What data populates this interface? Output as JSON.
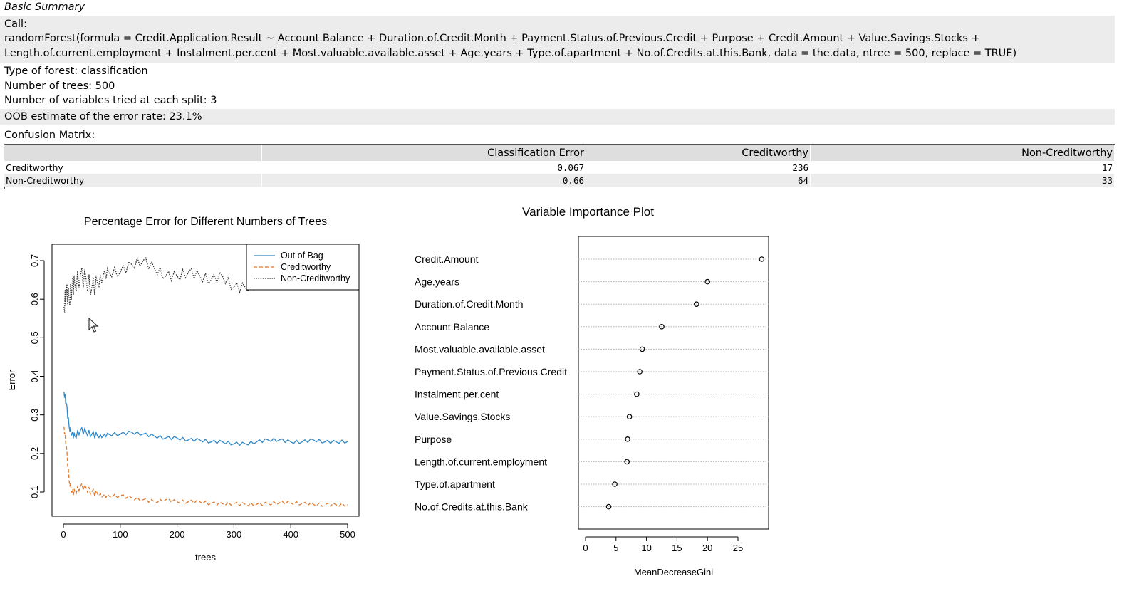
{
  "summary_title": "Basic Summary",
  "call_label": "Call:",
  "call_line1": "randomForest(formula = Credit.Application.Result ~ Account.Balance + Duration.of.Credit.Month + Payment.Status.of.Previous.Credit + Purpose + Credit.Amount + Value.Savings.Stocks +",
  "call_line2": "Length.of.current.employment + Instalment.per.cent + Most.valuable.available.asset + Age.years + Type.of.apartment + No.of.Credits.at.this.Bank, data = the.data, ntree = 500, replace = TRUE)",
  "forest_type": "Type of forest: classification",
  "num_trees": "Number of trees: 500",
  "mtry": "Number of variables tried at each split: 3",
  "oob_error": "OOB estimate of the error rate: 23.1%",
  "confusion_label": "Confusion Matrix:",
  "confusion": {
    "headers": [
      "",
      "Classification Error",
      "Creditworthy",
      "Non-Creditworthy"
    ],
    "rows": [
      [
        "Creditworthy",
        "0.067",
        "236",
        "17"
      ],
      [
        "Non-Creditworthy",
        "0.66",
        "64",
        "33"
      ]
    ]
  },
  "chart_data": [
    {
      "type": "line",
      "title": "Percentage Error for Different Numbers of Trees",
      "xlabel": "trees",
      "ylabel": "Error",
      "xlim": [
        0,
        500
      ],
      "ylim": [
        0.05,
        0.75
      ],
      "xticks": [
        0,
        100,
        200,
        300,
        400,
        500
      ],
      "yticks": [
        0.1,
        0.2,
        0.3,
        0.4,
        0.5,
        0.6,
        0.7
      ],
      "legend": "top-right",
      "series": [
        {
          "name": "Out of Bag",
          "color": "#2f89c8",
          "style": "solid",
          "x": [
            1,
            5,
            10,
            15,
            20,
            30,
            40,
            50,
            60,
            70,
            80,
            100,
            120,
            140,
            160,
            180,
            200,
            220,
            240,
            260,
            280,
            300,
            320,
            340,
            360,
            380,
            400,
            420,
            440,
            460,
            480,
            500
          ],
          "y": [
            0.36,
            0.33,
            0.27,
            0.25,
            0.245,
            0.26,
            0.255,
            0.25,
            0.245,
            0.245,
            0.25,
            0.25,
            0.255,
            0.25,
            0.245,
            0.24,
            0.24,
            0.235,
            0.235,
            0.23,
            0.23,
            0.225,
            0.225,
            0.23,
            0.235,
            0.235,
            0.23,
            0.23,
            0.235,
            0.23,
            0.23,
            0.231
          ]
        },
        {
          "name": "Creditworthy",
          "color": "#e0772a",
          "style": "dashed",
          "x": [
            1,
            5,
            10,
            15,
            20,
            30,
            40,
            50,
            60,
            70,
            80,
            100,
            120,
            140,
            160,
            180,
            200,
            220,
            240,
            260,
            280,
            300,
            320,
            340,
            360,
            380,
            400,
            420,
            440,
            460,
            480,
            500
          ],
          "y": [
            0.27,
            0.22,
            0.13,
            0.1,
            0.1,
            0.115,
            0.11,
            0.1,
            0.095,
            0.09,
            0.09,
            0.09,
            0.085,
            0.08,
            0.075,
            0.08,
            0.075,
            0.075,
            0.075,
            0.07,
            0.07,
            0.07,
            0.068,
            0.068,
            0.07,
            0.072,
            0.072,
            0.07,
            0.068,
            0.067,
            0.067,
            0.067
          ]
        },
        {
          "name": "Non-Creditworthy",
          "color": "#333333",
          "style": "dotted",
          "x": [
            1,
            5,
            10,
            15,
            20,
            30,
            40,
            50,
            60,
            70,
            80,
            100,
            120,
            140,
            160,
            180,
            200,
            220,
            240,
            260,
            280,
            300,
            320,
            340,
            360,
            380,
            400,
            420,
            440,
            460,
            480,
            500
          ],
          "y": [
            0.58,
            0.62,
            0.6,
            0.63,
            0.64,
            0.66,
            0.65,
            0.63,
            0.64,
            0.66,
            0.67,
            0.67,
            0.69,
            0.7,
            0.68,
            0.66,
            0.66,
            0.67,
            0.66,
            0.65,
            0.66,
            0.63,
            0.63,
            0.64,
            0.65,
            0.65,
            0.65,
            0.65,
            0.66,
            0.66,
            0.66,
            0.66
          ]
        }
      ]
    },
    {
      "type": "scatter",
      "title": "Variable Importance Plot",
      "xlabel": "MeanDecreaseGini",
      "ylabel": "",
      "xlim": [
        0,
        29
      ],
      "xticks": [
        0,
        5,
        10,
        15,
        20,
        25
      ],
      "grid": true,
      "categories": [
        "Credit.Amount",
        "Age.years",
        "Duration.of.Credit.Month",
        "Account.Balance",
        "Most.valuable.available.asset",
        "Payment.Status.of.Previous.Credit",
        "Instalment.per.cent",
        "Value.Savings.Stocks",
        "Purpose",
        "Length.of.current.employment",
        "Type.of.apartment",
        "No.of.Credits.at.this.Bank"
      ],
      "values": [
        28.9,
        20.0,
        18.2,
        12.5,
        9.3,
        8.9,
        8.4,
        7.2,
        6.9,
        6.8,
        4.8,
        3.8
      ]
    }
  ]
}
